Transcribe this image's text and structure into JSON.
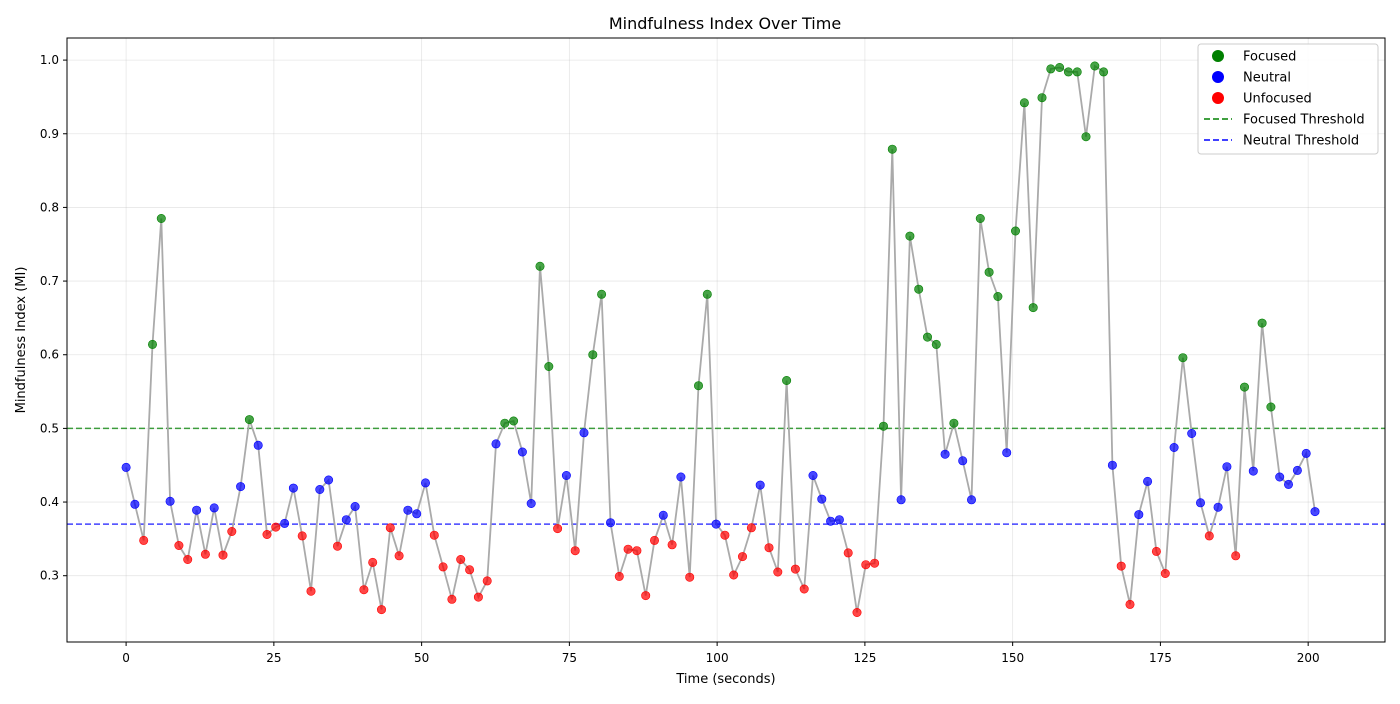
{
  "chart_data": {
    "type": "scatter",
    "title": "Mindfulness Index Over Time",
    "xlabel": "Time (seconds)",
    "ylabel": "Mindfulness Index (MI)",
    "xlim": [
      -10,
      213
    ],
    "ylim": [
      0.21,
      1.03
    ],
    "xticks": [
      0,
      25,
      50,
      75,
      100,
      125,
      150,
      175,
      200
    ],
    "yticks": [
      0.3,
      0.4,
      0.5,
      0.6,
      0.7,
      0.8,
      0.9,
      1.0
    ],
    "xtick_labels": [
      "0",
      "25",
      "50",
      "75",
      "100",
      "125",
      "150",
      "175",
      "200"
    ],
    "ytick_labels": [
      "0.3",
      "0.4",
      "0.5",
      "0.6",
      "0.7",
      "0.8",
      "0.9",
      "1.0"
    ],
    "grid": true,
    "legend_position": "top-right",
    "legend": [
      {
        "label": "Focused",
        "kind": "marker",
        "color": "#008000"
      },
      {
        "label": "Neutral",
        "kind": "marker",
        "color": "#0000ff"
      },
      {
        "label": "Unfocused",
        "kind": "marker",
        "color": "#ff0000"
      },
      {
        "label": "Focused Threshold",
        "kind": "dashed-line",
        "color": "#008000"
      },
      {
        "label": "Neutral Threshold",
        "kind": "dashed-line",
        "color": "#0000ff"
      }
    ],
    "thresholds": {
      "focused": 0.5,
      "neutral": 0.37
    },
    "colors": {
      "focused": "#008000",
      "neutral": "#0000ff",
      "unfocused": "#ff0000",
      "line": "#aaaaaa"
    },
    "x_step": 1.49,
    "values": [
      0.447,
      0.397,
      0.348,
      0.614,
      0.785,
      0.401,
      0.341,
      0.322,
      0.389,
      0.329,
      0.392,
      0.328,
      0.36,
      0.421,
      0.512,
      0.477,
      0.356,
      0.366,
      0.371,
      0.419,
      0.354,
      0.279,
      0.417,
      0.43,
      0.34,
      0.376,
      0.394,
      0.281,
      0.318,
      0.254,
      0.365,
      0.327,
      0.389,
      0.384,
      0.426,
      0.355,
      0.312,
      0.268,
      0.322,
      0.308,
      0.271,
      0.293,
      0.479,
      0.507,
      0.51,
      0.468,
      0.398,
      0.72,
      0.584,
      0.364,
      0.436,
      0.334,
      0.494,
      0.6,
      0.682,
      0.372,
      0.299,
      0.336,
      0.334,
      0.273,
      0.348,
      0.382,
      0.342,
      0.434,
      0.298,
      0.558,
      0.682,
      0.37,
      0.355,
      0.301,
      0.326,
      0.365,
      0.423,
      0.338,
      0.305,
      0.565,
      0.309,
      0.282,
      0.436,
      0.404,
      0.374,
      0.376,
      0.331,
      0.25,
      0.315,
      0.317,
      0.503,
      0.879,
      0.403,
      0.761,
      0.689,
      0.624,
      0.614,
      0.465,
      0.507,
      0.456,
      0.403,
      0.785,
      0.712,
      0.679,
      0.467,
      0.768,
      0.942,
      0.664,
      0.949,
      0.988,
      0.99,
      0.984,
      0.984,
      0.896,
      0.992,
      0.984,
      0.45,
      0.313,
      0.261,
      0.383,
      0.428,
      0.333,
      0.303,
      0.474,
      0.596,
      0.493,
      0.399,
      0.354,
      0.393,
      0.448,
      0.327,
      0.556,
      0.442,
      0.643,
      0.529,
      0.434,
      0.424,
      0.443,
      0.466,
      0.387
    ]
  }
}
